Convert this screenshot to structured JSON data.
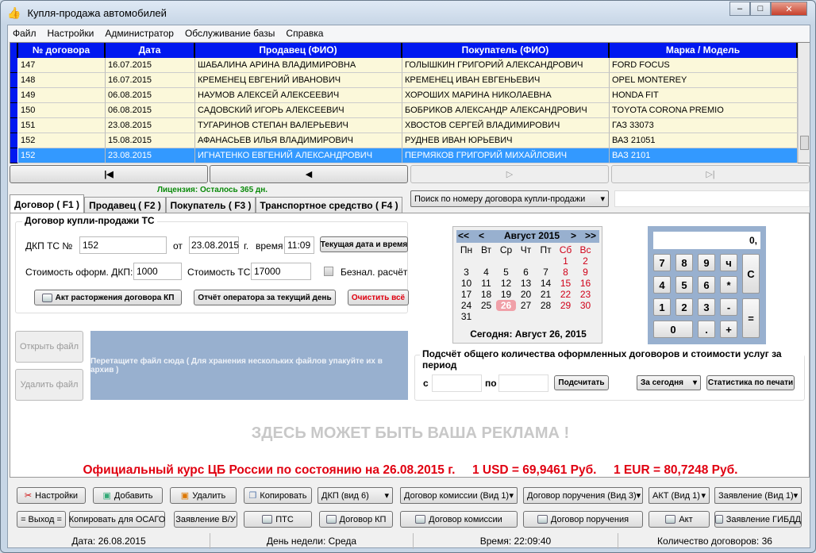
{
  "window": {
    "title": "Купля-продажа автомобилей",
    "minimize": "–",
    "maximize": "□",
    "close": "✕"
  },
  "menu": [
    "Файл",
    "Настройки",
    "Администратор",
    "Обслуживание базы",
    "Справка"
  ],
  "grid": {
    "columns": [
      "№ договора",
      "Дата",
      "Продавец (ФИО)",
      "Покупатель (ФИО)",
      "Марка / Модель"
    ],
    "rows": [
      [
        "147",
        "16.07.2015",
        "ШАБАЛИНА АРИНА ВЛАДИМИРОВНА",
        "ГОЛЫШКИН ГРИГОРИЙ АЛЕКСАНДРОВИЧ",
        "FORD FOCUS"
      ],
      [
        "148",
        "16.07.2015",
        "КРЕМЕНЕЦ ЕВГЕНИЙ ИВАНОВИЧ",
        "КРЕМЕНЕЦ ИВАН ЕВГЕНЬЕВИЧ",
        "OPEL MONTEREY"
      ],
      [
        "149",
        "06.08.2015",
        "НАУМОВ АЛЕКСЕЙ АЛЕКСЕЕВИЧ",
        "ХОРОШИХ МАРИНА НИКОЛАЕВНА",
        "HONDA FIT"
      ],
      [
        "150",
        "06.08.2015",
        "САДОВСКИЙ ИГОРЬ АЛЕКСЕЕВИЧ",
        "БОБРИКОВ АЛЕКСАНДР АЛЕКСАНДРОВИЧ",
        "TOYOTA CORONA PREMIO"
      ],
      [
        "151",
        "23.08.2015",
        "ТУГАРИНОВ СТЕПАН ВАЛЕРЬЕВИЧ",
        "ХВОСТОВ СЕРГЕЙ ВЛАДИМИРОВИЧ",
        "ГАЗ 33073"
      ],
      [
        "152",
        "15.08.2015",
        "АФАНАСЬЕВ ИЛЬЯ ВЛАДИМИРОВИЧ",
        "РУДНЕВ ИВАН ЮРЬЕВИЧ",
        "ВАЗ 21051"
      ],
      [
        "152",
        "23.08.2015",
        "ИГНАТЕНКО ЕВГЕНИЙ АЛЕКСАНДРОВИЧ",
        "ПЕРМЯКОВ ГРИГОРИЙ МИХАЙЛОВИЧ",
        "ВАЗ 2101"
      ]
    ],
    "selected_row": 6
  },
  "nav": {
    "first": "|◀",
    "prev": "◀",
    "next": "▷",
    "last": "▷|"
  },
  "license": "Лицензия: Осталось 365 дн.",
  "search": {
    "mode": "Поиск по номеру договора купли-продажи",
    "value": ""
  },
  "tabs": [
    "Договор ( F1 )",
    "Продавец ( F2 )",
    "Покупатель ( F3 )",
    "Транспортное средство ( F4 )"
  ],
  "contract": {
    "group_title": "Договор купли-продажи ТС",
    "num_label": "ДКП ТС №",
    "num": "152",
    "from_label": "от",
    "date": "23.08.2015",
    "year_label": "г.",
    "time_label": "время",
    "time": "11:09",
    "now_button": "Текущая дата и время",
    "fee_label": "Стоимость оформ. ДКП:",
    "fee": "1000",
    "price_label": "Стоимость ТС:",
    "price": "17000",
    "cashless_label": "Безнал. расчёт",
    "cashless": false,
    "act_button": "Акт расторжения договора КП",
    "report_button": "Отчёт оператора за текущий день",
    "clear_button": "Очистить всё"
  },
  "files": {
    "open": "Открыть файл",
    "delete": "Удалить файл",
    "drop": "Перетащите файл сюда ( Для хранения нескольких файлов упакуйте их в архив )"
  },
  "calendar": {
    "prev_year": "<<",
    "prev": "<",
    "month": "Август 2015",
    "next": ">",
    "next_year": ">>",
    "weekdays": [
      "Пн",
      "Вт",
      "Ср",
      "Чт",
      "Пт",
      "Сб",
      "Вс"
    ],
    "weeks": [
      [
        "",
        "",
        "",
        "",
        "",
        "1",
        "2"
      ],
      [
        "3",
        "4",
        "5",
        "6",
        "7",
        "8",
        "9"
      ],
      [
        "10",
        "11",
        "12",
        "13",
        "14",
        "15",
        "16"
      ],
      [
        "17",
        "18",
        "19",
        "20",
        "21",
        "22",
        "23"
      ],
      [
        "24",
        "25",
        "26",
        "27",
        "28",
        "29",
        "30"
      ],
      [
        "31",
        "",
        "",
        "",
        "",
        "",
        ""
      ]
    ],
    "today_day": "26",
    "today": "Сегодня:  Август 26, 2015"
  },
  "calculator": {
    "display": "0,",
    "keys": [
      "7",
      "8",
      "9",
      "ч",
      "C",
      "4",
      "5",
      "6",
      "*",
      "1",
      "2",
      "3",
      "-",
      "=",
      "0",
      ".",
      "+"
    ]
  },
  "period": {
    "title": "Подсчёт общего количества оформленных договоров и стоимости услуг за период",
    "from_label": "с",
    "to_label": "по",
    "from": "",
    "to": "",
    "count_button": "Подсчитать",
    "range": "За сегодня",
    "stats_button": "Статистика по печати"
  },
  "ad": "ЗДЕСЬ МОЖЕТ БЫТЬ ВАША РЕКЛАМА !",
  "rates": "Официальный курс ЦБ России по состоянию на 26.08.2015 г.     1 USD = 69,9461 Руб.     1 EUR = 80,7248 Руб.",
  "toolbar": {
    "settings": "Настройки",
    "add": "Добавить",
    "delete": "Удалить",
    "copy": "Копировать",
    "dkp": "ДКП (вид 6)",
    "commission": "Договор комиссии (Вид 1)",
    "order": "Договор поручения (Вид 3)",
    "act": "АКТ (Вид 1)",
    "statement": "Заявление (Вид 1)",
    "exit": "= Выход =",
    "copy_osago": "Копировать для ОСАГО",
    "statement_vu": "Заявление В/У",
    "pts": "ПТС",
    "print_kp": "Договор КП",
    "print_commission": "Договор комиссии",
    "print_order": "Договор поручения",
    "print_act": "Акт",
    "print_gibdd": "Заявление ГИБДД"
  },
  "status": {
    "date": "Дата: 26.08.2015",
    "weekday": "День недели: Среда",
    "time": "Время: 22:09:40",
    "count": "Количество договоров: 36"
  },
  "colors": {
    "grid_header": "#0018f0",
    "row_bg": "#fbf8da",
    "selected": "#3399ff",
    "license": "#0a8a0a",
    "rates": "#e00010",
    "ad": "#c8c8c8"
  }
}
